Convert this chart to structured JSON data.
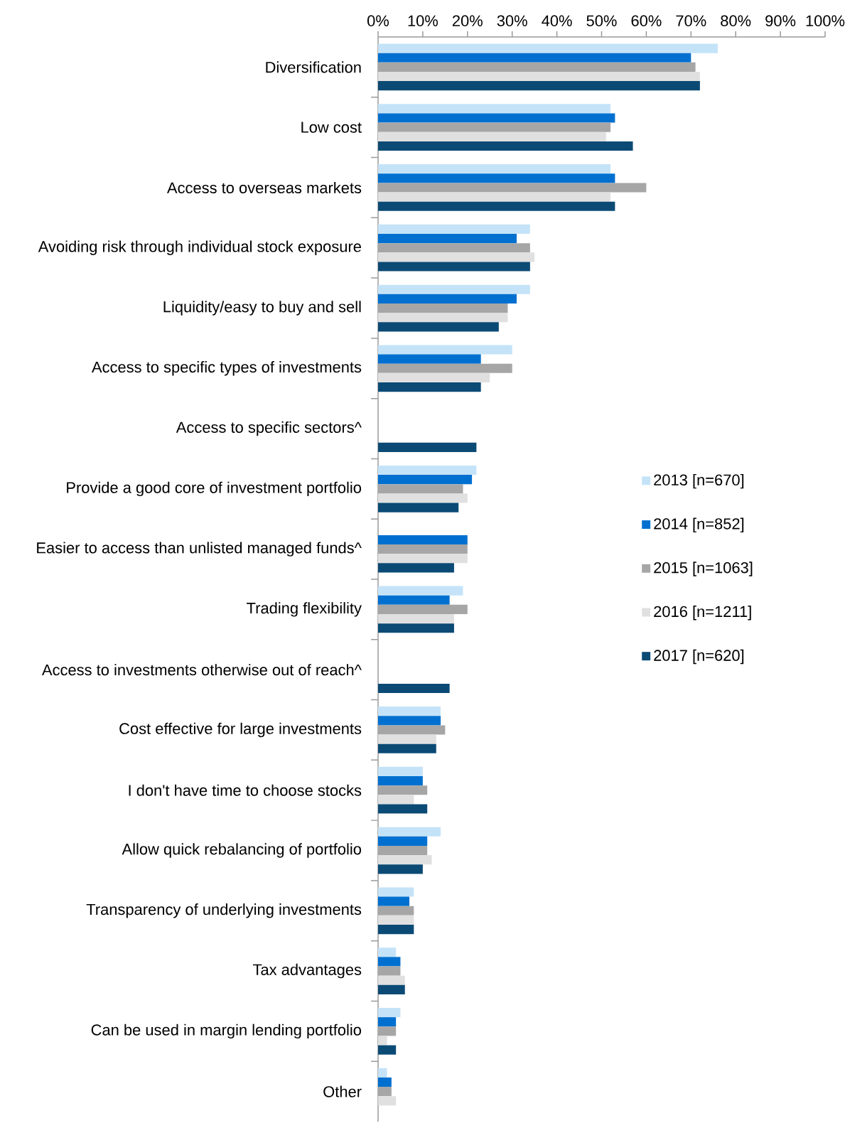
{
  "chart_data": {
    "type": "bar",
    "orientation": "horizontal",
    "categories": [
      "Diversification",
      "Low cost",
      "Access to overseas markets",
      "Avoiding risk through individual stock exposure",
      "Liquidity/easy to buy and sell",
      "Access to specific types of investments",
      "Access to specific sectors^",
      "Provide a good core of investment portfolio",
      "Easier to access than unlisted managed funds^",
      "Trading flexibility",
      "Access to investments otherwise out of reach^",
      "Cost effective for large investments",
      "I don't have time to choose stocks",
      "Allow quick rebalancing of portfolio",
      "Transparency of underlying investments",
      "Tax advantages",
      "Can be used in margin lending portfolio",
      "Other"
    ],
    "series": [
      {
        "name": "2013 [n=670]",
        "color": "#c5e3f8",
        "values": [
          76,
          52,
          52,
          34,
          34,
          30,
          null,
          22,
          null,
          19,
          null,
          14,
          10,
          14,
          8,
          4,
          5,
          2
        ]
      },
      {
        "name": "2014 [n=852]",
        "color": "#0070d0",
        "values": [
          70,
          53,
          53,
          31,
          31,
          23,
          null,
          21,
          20,
          16,
          null,
          14,
          10,
          11,
          7,
          5,
          4,
          3
        ]
      },
      {
        "name": "2015 [n=1063]",
        "color": "#a6a6a6",
        "values": [
          71,
          52,
          60,
          34,
          29,
          30,
          null,
          19,
          20,
          20,
          null,
          15,
          11,
          11,
          8,
          5,
          4,
          3
        ]
      },
      {
        "name": "2016 [n=1211]",
        "color": "#e0e0e0",
        "values": [
          72,
          51,
          52,
          35,
          29,
          25,
          null,
          20,
          20,
          17,
          null,
          13,
          8,
          12,
          8,
          6,
          2,
          4
        ]
      },
      {
        "name": "2017 [n=620]",
        "color": "#0b4a75",
        "values": [
          72,
          57,
          53,
          34,
          27,
          23,
          22,
          18,
          17,
          17,
          16,
          13,
          11,
          10,
          8,
          6,
          4,
          null
        ]
      }
    ],
    "xlim": [
      0,
      100
    ],
    "xticks": [
      {
        "value": 0,
        "label": "0%"
      },
      {
        "value": 10,
        "label": "10%"
      },
      {
        "value": 20,
        "label": "20%"
      },
      {
        "value": 30,
        "label": "30%"
      },
      {
        "value": 40,
        "label": "40%"
      },
      {
        "value": 50,
        "label": "50%"
      },
      {
        "value": 60,
        "label": "60%"
      },
      {
        "value": 70,
        "label": "70%"
      },
      {
        "value": 80,
        "label": "80%"
      },
      {
        "value": 90,
        "label": "90%"
      },
      {
        "value": 100,
        "label": "100%"
      }
    ],
    "legend": "right"
  }
}
